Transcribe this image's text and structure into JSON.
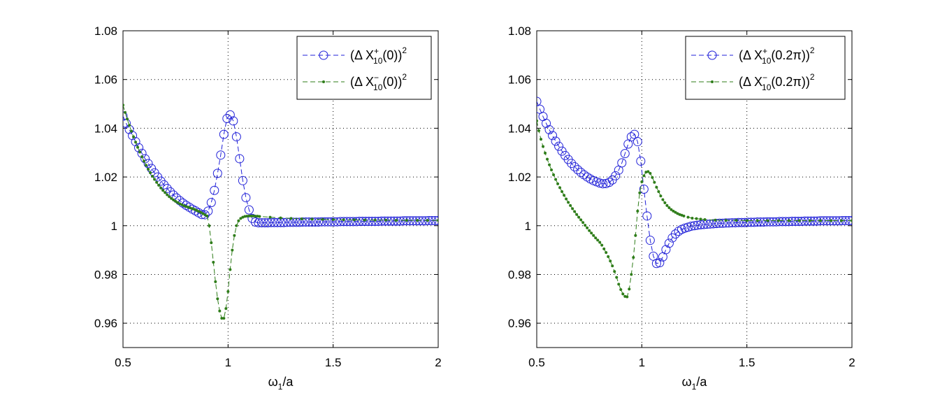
{
  "chart_data": [
    {
      "type": "line",
      "panel": "left",
      "title": "",
      "xlabel": {
        "main": "ω",
        "sub": "1",
        "tail": "/a"
      },
      "ylabel": "",
      "xlim": [
        0.5,
        2
      ],
      "ylim": [
        0.95,
        1.08
      ],
      "xticks": [
        0.5,
        1,
        1.5,
        2
      ],
      "xtick_labels": [
        "0.5",
        "1",
        "1.5",
        "2"
      ],
      "yticks": [
        0.96,
        0.98,
        1,
        1.02,
        1.04,
        1.06,
        1.08
      ],
      "ytick_labels": [
        "0.96",
        "0.98",
        "1",
        "1.02",
        "1.04",
        "1.06",
        "1.08"
      ],
      "grid": true,
      "legend_position": "top-right",
      "series": [
        {
          "name": "(Δ X+10(0))^2",
          "legend": {
            "pre": "(Δ X",
            "sup": "+",
            "sub": "10",
            "mid": "(0))",
            "post": "2"
          },
          "color": "#2020d8",
          "marker": "open-circle",
          "x": [
            0.5,
            0.515,
            0.53,
            0.545,
            0.56,
            0.575,
            0.59,
            0.605,
            0.62,
            0.635,
            0.65,
            0.665,
            0.68,
            0.695,
            0.71,
            0.725,
            0.74,
            0.755,
            0.77,
            0.785,
            0.8,
            0.815,
            0.83,
            0.845,
            0.86,
            0.875,
            0.89,
            0.905,
            0.92,
            0.935,
            0.95,
            0.965,
            0.98,
            0.995,
            1.01,
            1.025,
            1.04,
            1.055,
            1.07,
            1.085,
            1.1,
            1.115,
            1.13,
            1.145,
            1.16,
            1.175,
            1.19,
            1.205,
            1.22,
            1.235,
            1.25,
            1.265,
            1.28,
            1.295,
            1.31,
            1.325,
            1.34,
            1.355,
            1.37,
            1.385,
            1.4,
            1.415,
            1.43,
            1.445,
            1.46,
            1.475,
            1.49,
            1.505,
            1.52,
            1.535,
            1.55,
            1.565,
            1.58,
            1.595,
            1.61,
            1.625,
            1.64,
            1.655,
            1.67,
            1.685,
            1.7,
            1.715,
            1.73,
            1.745,
            1.76,
            1.775,
            1.79,
            1.805,
            1.82,
            1.835,
            1.85,
            1.865,
            1.88,
            1.895,
            1.91,
            1.925,
            1.94,
            1.955,
            1.97,
            1.985,
            2.0
          ],
          "y": [
            1.045,
            1.042,
            1.0395,
            1.037,
            1.0345,
            1.032,
            1.0297,
            1.0275,
            1.0255,
            1.0235,
            1.0217,
            1.02,
            1.0183,
            1.0168,
            1.0153,
            1.0139,
            1.0126,
            1.0114,
            1.0103,
            1.0093,
            1.0084,
            1.0076,
            1.0068,
            1.0061,
            1.0053,
            1.0046,
            1.0045,
            1.006,
            1.0095,
            1.0145,
            1.0215,
            1.029,
            1.0375,
            1.044,
            1.0455,
            1.043,
            1.0365,
            1.0275,
            1.0185,
            1.0115,
            1.0065,
            1.003,
            1.0015,
            1.0012,
            1.0012,
            1.0012,
            1.0012,
            1.0013,
            1.0013,
            1.0013,
            1.0013,
            1.0013,
            1.0014,
            1.0014,
            1.0014,
            1.0014,
            1.0014,
            1.0015,
            1.0015,
            1.0015,
            1.0015,
            1.0015,
            1.0015,
            1.0016,
            1.0016,
            1.0016,
            1.0016,
            1.0016,
            1.0016,
            1.0017,
            1.0017,
            1.0017,
            1.0017,
            1.0017,
            1.0017,
            1.0018,
            1.0018,
            1.0018,
            1.0018,
            1.0018,
            1.0018,
            1.0018,
            1.0019,
            1.0019,
            1.0019,
            1.0019,
            1.0019,
            1.0019,
            1.0019,
            1.002,
            1.002,
            1.002,
            1.002,
            1.002,
            1.002,
            1.002,
            1.002,
            1.0021,
            1.0021,
            1.0021,
            1.0021
          ]
        },
        {
          "name": "(Δ X−10(0))^2",
          "legend": {
            "pre": "(Δ X",
            "sup": "−",
            "sub": "10",
            "mid": "(0))",
            "post": "2"
          },
          "color": "#2f7d1a",
          "marker": "dot",
          "x": [
            0.5,
            0.51,
            0.52,
            0.53,
            0.54,
            0.55,
            0.56,
            0.57,
            0.58,
            0.59,
            0.6,
            0.61,
            0.62,
            0.63,
            0.64,
            0.65,
            0.66,
            0.67,
            0.68,
            0.69,
            0.7,
            0.71,
            0.72,
            0.73,
            0.74,
            0.75,
            0.76,
            0.77,
            0.78,
            0.79,
            0.8,
            0.81,
            0.82,
            0.83,
            0.84,
            0.85,
            0.86,
            0.87,
            0.88,
            0.89,
            0.9,
            0.91,
            0.92,
            0.93,
            0.94,
            0.95,
            0.96,
            0.97,
            0.98,
            0.99,
            1.0,
            1.01,
            1.02,
            1.03,
            1.04,
            1.05,
            1.06,
            1.07,
            1.08,
            1.09,
            1.1,
            1.11,
            1.12,
            1.13,
            1.14,
            1.15,
            1.2,
            1.25,
            1.3,
            1.35,
            1.4,
            1.45,
            1.5,
            1.55,
            1.6,
            1.65,
            1.7,
            1.75,
            1.8,
            1.85,
            1.9,
            1.95,
            2.0
          ],
          "y": [
            1.0495,
            1.0465,
            1.0438,
            1.0412,
            1.0388,
            1.0365,
            1.0343,
            1.0322,
            1.0302,
            1.0283,
            1.0265,
            1.0248,
            1.0232,
            1.0217,
            1.0203,
            1.019,
            1.0178,
            1.0166,
            1.0155,
            1.0145,
            1.0136,
            1.0127,
            1.0119,
            1.0112,
            1.0106,
            1.01,
            1.0095,
            1.009,
            1.0086,
            1.0082,
            1.0079,
            1.0076,
            1.0073,
            1.007,
            1.0067,
            1.0063,
            1.0059,
            1.0055,
            1.005,
            1.0045,
            1.004,
            1.0,
            0.993,
            0.985,
            0.977,
            0.97,
            0.965,
            0.962,
            0.962,
            0.966,
            0.973,
            0.982,
            0.99,
            0.996,
            1.0,
            1.002,
            1.003,
            1.0035,
            1.0038,
            1.0039,
            1.004,
            1.004,
            1.004,
            1.0039,
            1.0039,
            1.0038,
            1.0035,
            1.0032,
            1.003,
            1.0028,
            1.0027,
            1.0026,
            1.0025,
            1.0024,
            1.0024,
            1.0023,
            1.0023,
            1.0023,
            1.0022,
            1.0022,
            1.0022,
            1.0022,
            1.0022
          ]
        }
      ]
    },
    {
      "type": "line",
      "panel": "right",
      "title": "",
      "xlabel": {
        "main": "ω",
        "sub": "1",
        "tail": "/a"
      },
      "ylabel": "",
      "xlim": [
        0.5,
        2
      ],
      "ylim": [
        0.95,
        1.08
      ],
      "xticks": [
        0.5,
        1,
        1.5,
        2
      ],
      "xtick_labels": [
        "0.5",
        "1",
        "1.5",
        "2"
      ],
      "yticks": [
        0.96,
        0.98,
        1,
        1.02,
        1.04,
        1.06,
        1.08
      ],
      "ytick_labels": [
        "0.96",
        "0.98",
        "1",
        "1.02",
        "1.04",
        "1.06",
        "1.08"
      ],
      "grid": true,
      "legend_position": "top-right",
      "series": [
        {
          "name": "(Δ X+10(0.2π))^2",
          "legend": {
            "pre": "(Δ X",
            "sup": "+",
            "sub": "10",
            "mid": "(0.2π))",
            "post": "2"
          },
          "color": "#2020d8",
          "marker": "open-circle",
          "x": [
            0.5,
            0.515,
            0.53,
            0.545,
            0.56,
            0.575,
            0.59,
            0.605,
            0.62,
            0.635,
            0.65,
            0.665,
            0.68,
            0.695,
            0.71,
            0.725,
            0.74,
            0.755,
            0.77,
            0.785,
            0.8,
            0.815,
            0.83,
            0.845,
            0.86,
            0.875,
            0.89,
            0.905,
            0.92,
            0.935,
            0.95,
            0.965,
            0.98,
            0.995,
            1.01,
            1.025,
            1.04,
            1.055,
            1.07,
            1.085,
            1.1,
            1.115,
            1.13,
            1.145,
            1.16,
            1.175,
            1.19,
            1.205,
            1.22,
            1.235,
            1.25,
            1.265,
            1.28,
            1.295,
            1.31,
            1.325,
            1.34,
            1.355,
            1.37,
            1.385,
            1.4,
            1.415,
            1.43,
            1.445,
            1.46,
            1.475,
            1.49,
            1.505,
            1.52,
            1.535,
            1.55,
            1.565,
            1.58,
            1.595,
            1.61,
            1.625,
            1.64,
            1.655,
            1.67,
            1.685,
            1.7,
            1.715,
            1.73,
            1.745,
            1.76,
            1.775,
            1.79,
            1.805,
            1.82,
            1.835,
            1.85,
            1.865,
            1.88,
            1.895,
            1.91,
            1.925,
            1.94,
            1.955,
            1.97,
            1.985,
            2.0
          ],
          "y": [
            1.051,
            1.0478,
            1.0448,
            1.042,
            1.0394,
            1.037,
            1.0347,
            1.0326,
            1.0306,
            1.0288,
            1.0272,
            1.0256,
            1.0242,
            1.023,
            1.0219,
            1.0209,
            1.02,
            1.0192,
            1.0185,
            1.018,
            1.0175,
            1.0172,
            1.0173,
            1.0178,
            1.0188,
            1.0205,
            1.0228,
            1.0258,
            1.0296,
            1.0335,
            1.0365,
            1.0375,
            1.0345,
            1.0265,
            1.015,
            1.004,
            0.994,
            0.9875,
            0.9845,
            0.9848,
            0.9872,
            0.9902,
            0.9928,
            0.995,
            0.9966,
            0.9977,
            0.9985,
            0.999,
            0.9994,
            0.9998,
            1.0,
            1.0002,
            1.0004,
            1.0005,
            1.0006,
            1.0007,
            1.0008,
            1.0009,
            1.001,
            1.001,
            1.0011,
            1.0011,
            1.0012,
            1.0012,
            1.0013,
            1.0013,
            1.0013,
            1.0014,
            1.0014,
            1.0014,
            1.0015,
            1.0015,
            1.0015,
            1.0016,
            1.0016,
            1.0016,
            1.0016,
            1.0017,
            1.0017,
            1.0017,
            1.0017,
            1.0018,
            1.0018,
            1.0018,
            1.0018,
            1.0019,
            1.0019,
            1.0019,
            1.0019,
            1.0019,
            1.002,
            1.002,
            1.002,
            1.002,
            1.002,
            1.002,
            1.002,
            1.0021,
            1.0021,
            1.0021,
            1.0021
          ]
        },
        {
          "name": "(Δ X−10(0.2π))^2",
          "legend": {
            "pre": "(Δ X",
            "sup": "−",
            "sub": "10",
            "mid": "(0.2π))",
            "post": "2"
          },
          "color": "#2f7d1a",
          "marker": "dot",
          "x": [
            0.5,
            0.51,
            0.52,
            0.53,
            0.54,
            0.55,
            0.56,
            0.57,
            0.58,
            0.59,
            0.6,
            0.61,
            0.62,
            0.63,
            0.64,
            0.65,
            0.66,
            0.67,
            0.68,
            0.69,
            0.7,
            0.71,
            0.72,
            0.73,
            0.74,
            0.75,
            0.76,
            0.77,
            0.78,
            0.79,
            0.8,
            0.81,
            0.82,
            0.83,
            0.84,
            0.85,
            0.86,
            0.87,
            0.88,
            0.89,
            0.9,
            0.91,
            0.92,
            0.93,
            0.94,
            0.95,
            0.96,
            0.97,
            0.98,
            0.99,
            1.0,
            1.01,
            1.02,
            1.03,
            1.04,
            1.05,
            1.06,
            1.07,
            1.08,
            1.09,
            1.1,
            1.11,
            1.12,
            1.13,
            1.14,
            1.15,
            1.16,
            1.17,
            1.18,
            1.19,
            1.2,
            1.22,
            1.24,
            1.26,
            1.28,
            1.3,
            1.35,
            1.4,
            1.45,
            1.5,
            1.55,
            1.6,
            1.65,
            1.7,
            1.75,
            1.8,
            1.85,
            1.9,
            1.95,
            2.0
          ],
          "y": [
            1.043,
            1.039,
            1.0355,
            1.0325,
            1.0298,
            1.0273,
            1.025,
            1.0229,
            1.0209,
            1.019,
            1.0172,
            1.0156,
            1.014,
            1.0125,
            1.011,
            1.0096,
            1.0083,
            1.007,
            1.0058,
            1.0046,
            1.0035,
            1.0024,
            1.0013,
            1.0002,
            0.9991,
            0.998,
            0.997,
            0.996,
            0.995,
            0.9941,
            0.9932,
            0.992,
            0.9905,
            0.989,
            0.9873,
            0.9855,
            0.9835,
            0.9812,
            0.9788,
            0.976,
            0.9738,
            0.972,
            0.971,
            0.9708,
            0.974,
            0.98,
            0.987,
            0.996,
            1.006,
            1.0135,
            1.018,
            1.0205,
            1.022,
            1.0222,
            1.0215,
            1.0198,
            1.0178,
            1.0158,
            1.014,
            1.0122,
            1.0107,
            1.0094,
            1.0083,
            1.0074,
            1.0066,
            1.006,
            1.0055,
            1.005,
            1.0046,
            1.0043,
            1.004,
            1.0035,
            1.0031,
            1.0029,
            1.0027,
            1.0025,
            1.0023,
            1.0022,
            1.0022,
            1.0021,
            1.0021,
            1.0021,
            1.0021,
            1.0021,
            1.0021,
            1.0021,
            1.0021,
            1.0021,
            1.0021,
            1.0021
          ]
        }
      ]
    }
  ]
}
